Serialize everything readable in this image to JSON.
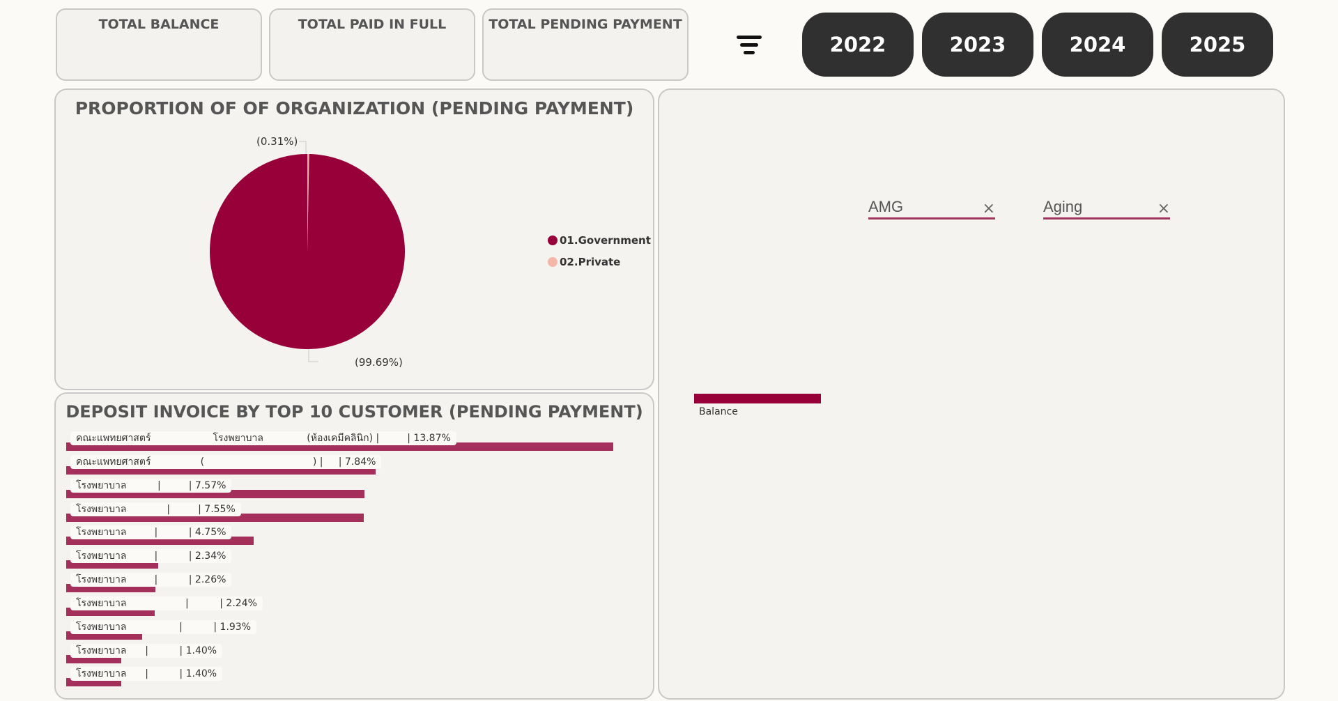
{
  "kpis": {
    "total_balance": "TOTAL BALANCE",
    "total_paid_in_full": "TOTAL PAID IN FULL",
    "total_pending_payment": "TOTAL PENDING PAYMENT"
  },
  "years": [
    "2022",
    "2023",
    "2024",
    "2025"
  ],
  "pie_panel": {
    "title": "PROPORTION OF OF ORGANIZATION (PENDING PAYMENT)",
    "label_small": "(0.31%)",
    "label_large": "(99.69%)",
    "legend": [
      {
        "label": "01.Government",
        "color": "#970038"
      },
      {
        "label": "02.Private",
        "color": "#f5b5a8"
      }
    ]
  },
  "slicers": {
    "amg": "AMG",
    "aging": "Aging",
    "clear_symbol": "×"
  },
  "balance_chart": {
    "label": "Balance",
    "color": "#970038"
  },
  "top10_panel": {
    "title": "DEPOSIT INVOICE BY TOP 10 CUSTOMER (PENDING PAYMENT)"
  },
  "colors": {
    "accent": "#970038",
    "bar": "#a42f5a",
    "year_button": "#303030"
  },
  "chart_data": [
    {
      "type": "pie",
      "title": "PROPORTION OF OF ORGANIZATION (PENDING PAYMENT)",
      "categories": [
        "01.Government",
        "02.Private"
      ],
      "values": [
        99.69,
        0.31
      ],
      "labels": [
        "(99.69%)",
        "(0.31%)"
      ],
      "legend_position": "right"
    },
    {
      "type": "bar",
      "orientation": "horizontal",
      "title": "DEPOSIT INVOICE BY TOP 10 CUSTOMER (PENDING PAYMENT)",
      "categories": [
        "คณะแพทยศาสตร์                    โรงพยาบาล              (ห้องเคมีคลินิก) |         | 13.87%",
        "คณะแพทยศาสตร์                (                                   ) |     | 7.84%",
        "โรงพยาบาล          |         | 7.57%",
        "โรงพยาบาล             |         | 7.55%",
        "โรงพยาบาล         |          | 4.75%",
        "โรงพยาบาล         |          | 2.34%",
        "โรงพยาบาล         |          | 2.26%",
        "โรงพยาบาล                   |          | 2.24%",
        "โรงพยาบาล                 |          | 1.93%",
        "โรงพยาบาล      |          | 1.40%",
        "โรงพยาบาล      |          | 1.40%"
      ],
      "values": [
        13.87,
        7.84,
        7.57,
        7.55,
        4.75,
        2.34,
        2.26,
        2.24,
        1.93,
        1.4,
        1.4
      ]
    }
  ]
}
